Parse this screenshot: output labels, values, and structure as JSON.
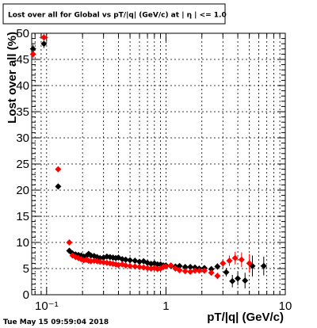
{
  "chart_data": {
    "type": "scatter",
    "title": "Lost over all for Global vs pT/|q| (GeV/c) at | η | <= 1.0",
    "xlabel": "pT/|q| (GeV/c)",
    "ylabel": "Lost over all (%)",
    "x_scale": "log",
    "xlim": [
      0.075,
      10
    ],
    "ylim": [
      0,
      50
    ],
    "x_ticks": [
      {
        "value": 0.1,
        "label": "10⁻¹"
      },
      {
        "value": 1,
        "label": "1"
      },
      {
        "value": 10,
        "label": "10"
      }
    ],
    "y_ticks": [
      0,
      5,
      10,
      15,
      20,
      25,
      30,
      35,
      40,
      45,
      50
    ],
    "grid": true,
    "timestamp": "Tue May 15 09:59:04 2018",
    "series": [
      {
        "color": "#000000",
        "points": [
          [
            0.077,
            47.0,
            0.8,
            0.003
          ],
          [
            0.095,
            48.0,
            0.8,
            0.005
          ],
          [
            0.125,
            20.7,
            0.5,
            0.006
          ],
          [
            0.155,
            8.4,
            0.3,
            0.007
          ],
          [
            0.165,
            7.9,
            0.3,
            0.007
          ],
          [
            0.175,
            7.7,
            0.3,
            0.007
          ],
          [
            0.185,
            7.6,
            0.3,
            0.007
          ],
          [
            0.195,
            7.5,
            0.3,
            0.007
          ],
          [
            0.205,
            7.3,
            0.3,
            0.007
          ],
          [
            0.215,
            7.4,
            0.3,
            0.007
          ],
          [
            0.225,
            7.8,
            0.3,
            0.007
          ],
          [
            0.235,
            7.5,
            0.3,
            0.007
          ],
          [
            0.25,
            7.4,
            0.3,
            0.007
          ],
          [
            0.265,
            7.2,
            0.3,
            0.008
          ],
          [
            0.28,
            7.0,
            0.3,
            0.008
          ],
          [
            0.3,
            7.1,
            0.3,
            0.008
          ],
          [
            0.32,
            7.3,
            0.3,
            0.008
          ],
          [
            0.34,
            7.2,
            0.3,
            0.008
          ],
          [
            0.36,
            7.1,
            0.3,
            0.009
          ],
          [
            0.38,
            7.0,
            0.3,
            0.009
          ],
          [
            0.4,
            7.1,
            0.3,
            0.01
          ],
          [
            0.43,
            6.8,
            0.3,
            0.01
          ],
          [
            0.46,
            6.7,
            0.3,
            0.01
          ],
          [
            0.5,
            6.6,
            0.3,
            0.01
          ],
          [
            0.55,
            6.5,
            0.3,
            0.01
          ],
          [
            0.6,
            6.3,
            0.3,
            0.02
          ],
          [
            0.65,
            6.4,
            0.3,
            0.02
          ],
          [
            0.7,
            6.1,
            0.3,
            0.02
          ],
          [
            0.75,
            5.9,
            0.3,
            0.02
          ],
          [
            0.8,
            6.0,
            0.3,
            0.02
          ],
          [
            0.85,
            5.8,
            0.3,
            0.02
          ],
          [
            0.9,
            5.8,
            0.3,
            0.02
          ],
          [
            0.95,
            5.6,
            0.3,
            0.02
          ],
          [
            1.0,
            5.6,
            0.3,
            0.02
          ],
          [
            1.1,
            5.5,
            0.3,
            0.03
          ],
          [
            1.2,
            5.4,
            0.3,
            0.03
          ],
          [
            1.3,
            5.5,
            0.3,
            0.03
          ],
          [
            1.45,
            5.3,
            0.4,
            0.04
          ],
          [
            1.6,
            5.3,
            0.4,
            0.04
          ],
          [
            1.75,
            5.2,
            0.4,
            0.05
          ],
          [
            1.9,
            5.0,
            0.4,
            0.05
          ],
          [
            2.1,
            5.1,
            0.5,
            0.06
          ],
          [
            2.4,
            4.9,
            0.5,
            0.08
          ],
          [
            2.7,
            5.4,
            0.6,
            0.09
          ],
          [
            3.2,
            4.3,
            0.8,
            0.12
          ],
          [
            3.6,
            2.6,
            1.2,
            0.15
          ],
          [
            4.0,
            3.1,
            1.3,
            0.2
          ],
          [
            4.6,
            2.7,
            1.5,
            0.2
          ],
          [
            5.3,
            5.5,
            2.0,
            0.25
          ],
          [
            6.6,
            5.5,
            1.8,
            0.4
          ]
        ]
      },
      {
        "color": "#ff0000",
        "points": [
          [
            0.077,
            46.0,
            0.8,
            0.003
          ],
          [
            0.095,
            49.2,
            0.8,
            0.008
          ],
          [
            0.125,
            24.0,
            0.5,
            0.006
          ],
          [
            0.155,
            10.0,
            0.4,
            0.007
          ],
          [
            0.165,
            7.5,
            0.3,
            0.007
          ],
          [
            0.175,
            7.2,
            0.3,
            0.007
          ],
          [
            0.185,
            7.0,
            0.3,
            0.007
          ],
          [
            0.195,
            6.8,
            0.3,
            0.007
          ],
          [
            0.205,
            6.6,
            0.3,
            0.007
          ],
          [
            0.215,
            6.7,
            0.3,
            0.007
          ],
          [
            0.225,
            6.5,
            0.3,
            0.007
          ],
          [
            0.235,
            6.4,
            0.3,
            0.007
          ],
          [
            0.25,
            6.5,
            0.3,
            0.007
          ],
          [
            0.265,
            6.4,
            0.3,
            0.008
          ],
          [
            0.28,
            6.3,
            0.3,
            0.008
          ],
          [
            0.3,
            6.2,
            0.3,
            0.008
          ],
          [
            0.32,
            6.1,
            0.3,
            0.008
          ],
          [
            0.34,
            6.0,
            0.3,
            0.008
          ],
          [
            0.36,
            5.9,
            0.3,
            0.009
          ],
          [
            0.38,
            5.8,
            0.3,
            0.009
          ],
          [
            0.4,
            5.7,
            0.3,
            0.01
          ],
          [
            0.43,
            5.8,
            0.3,
            0.01
          ],
          [
            0.46,
            5.6,
            0.3,
            0.01
          ],
          [
            0.5,
            5.5,
            0.3,
            0.01
          ],
          [
            0.55,
            5.4,
            0.3,
            0.01
          ],
          [
            0.6,
            5.3,
            0.3,
            0.02
          ],
          [
            0.65,
            5.2,
            0.3,
            0.02
          ],
          [
            0.7,
            5.1,
            0.3,
            0.02
          ],
          [
            0.75,
            5.0,
            0.3,
            0.02
          ],
          [
            0.8,
            5.1,
            0.3,
            0.02
          ],
          [
            0.85,
            4.9,
            0.3,
            0.02
          ],
          [
            0.9,
            5.0,
            0.3,
            0.02
          ],
          [
            0.95,
            5.3,
            0.3,
            0.02
          ],
          [
            1.0,
            5.4,
            0.3,
            0.02
          ],
          [
            1.1,
            5.6,
            0.3,
            0.03
          ],
          [
            1.2,
            5.0,
            0.3,
            0.03
          ],
          [
            1.3,
            4.7,
            0.3,
            0.03
          ],
          [
            1.45,
            4.5,
            0.4,
            0.04
          ],
          [
            1.6,
            4.4,
            0.4,
            0.04
          ],
          [
            1.75,
            4.6,
            0.4,
            0.05
          ],
          [
            1.9,
            4.6,
            0.4,
            0.05
          ],
          [
            2.1,
            4.6,
            0.5,
            0.06
          ],
          [
            2.4,
            4.2,
            0.5,
            0.08
          ],
          [
            2.7,
            3.6,
            0.6,
            0.09
          ],
          [
            3.0,
            6.0,
            0.8,
            0.12
          ],
          [
            3.4,
            6.5,
            1.0,
            0.15
          ],
          [
            3.8,
            7.0,
            1.2,
            0.2
          ],
          [
            4.3,
            6.7,
            1.4,
            0.2
          ],
          [
            5.0,
            6.0,
            1.8,
            0.25
          ]
        ]
      }
    ]
  }
}
